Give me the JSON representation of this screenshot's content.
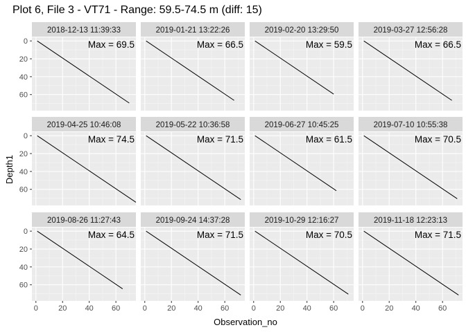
{
  "chart_data": {
    "type": "line",
    "title": "Plot 6, File 3 - VT71 - Range: 59.5-74.5 m (diff: 15)",
    "xlabel": "Observation_no",
    "ylabel": "Depth1",
    "y_reversed": true,
    "layout": "facet_wrap 3 rows x 4 columns",
    "grid": true,
    "x_ticks": [
      0,
      20,
      40,
      60
    ],
    "y_ticks": [
      0,
      20,
      40,
      60
    ],
    "xlim": [
      -3,
      75
    ],
    "ylim": [
      -4,
      78
    ],
    "line_color": "#000000",
    "panels": [
      {
        "label": "2018-12-13 11:39:33",
        "annotation": "Max = 69.5",
        "x": [
          1,
          70
        ],
        "y": [
          0,
          69.5
        ]
      },
      {
        "label": "2019-01-21 13:22:26",
        "annotation": "Max = 66.5",
        "x": [
          1,
          67
        ],
        "y": [
          0,
          66.5
        ]
      },
      {
        "label": "2019-02-20 13:29:50",
        "annotation": "Max = 59.5",
        "x": [
          1,
          60
        ],
        "y": [
          0,
          59.5
        ]
      },
      {
        "label": "2019-03-27 12:56:28",
        "annotation": "Max = 66.5",
        "x": [
          1,
          67
        ],
        "y": [
          0,
          66.5
        ]
      },
      {
        "label": "2019-04-25 10:46:08",
        "annotation": "Max = 74.5",
        "x": [
          1,
          75
        ],
        "y": [
          0,
          74.5
        ]
      },
      {
        "label": "2019-05-22 10:36:58",
        "annotation": "Max = 71.5",
        "x": [
          1,
          72
        ],
        "y": [
          0,
          71.5
        ]
      },
      {
        "label": "2019-06-27 10:45:25",
        "annotation": "Max = 61.5",
        "x": [
          1,
          62
        ],
        "y": [
          0,
          61.5
        ]
      },
      {
        "label": "2019-07-10 10:55:38",
        "annotation": "Max = 70.5",
        "x": [
          1,
          71
        ],
        "y": [
          0,
          70.5
        ]
      },
      {
        "label": "2019-08-26 11:27:43",
        "annotation": "Max = 64.5",
        "x": [
          1,
          65
        ],
        "y": [
          0,
          64.5
        ]
      },
      {
        "label": "2019-09-24 14:37:28",
        "annotation": "Max = 71.5",
        "x": [
          1,
          72
        ],
        "y": [
          0,
          71.5
        ]
      },
      {
        "label": "2019-10-29 12:16:27",
        "annotation": "Max = 70.5",
        "x": [
          1,
          71
        ],
        "y": [
          0,
          70.5
        ]
      },
      {
        "label": "2019-11-18 12:23:13",
        "annotation": "Max = 71.5",
        "x": [
          1,
          72
        ],
        "y": [
          0,
          71.5
        ]
      }
    ]
  }
}
